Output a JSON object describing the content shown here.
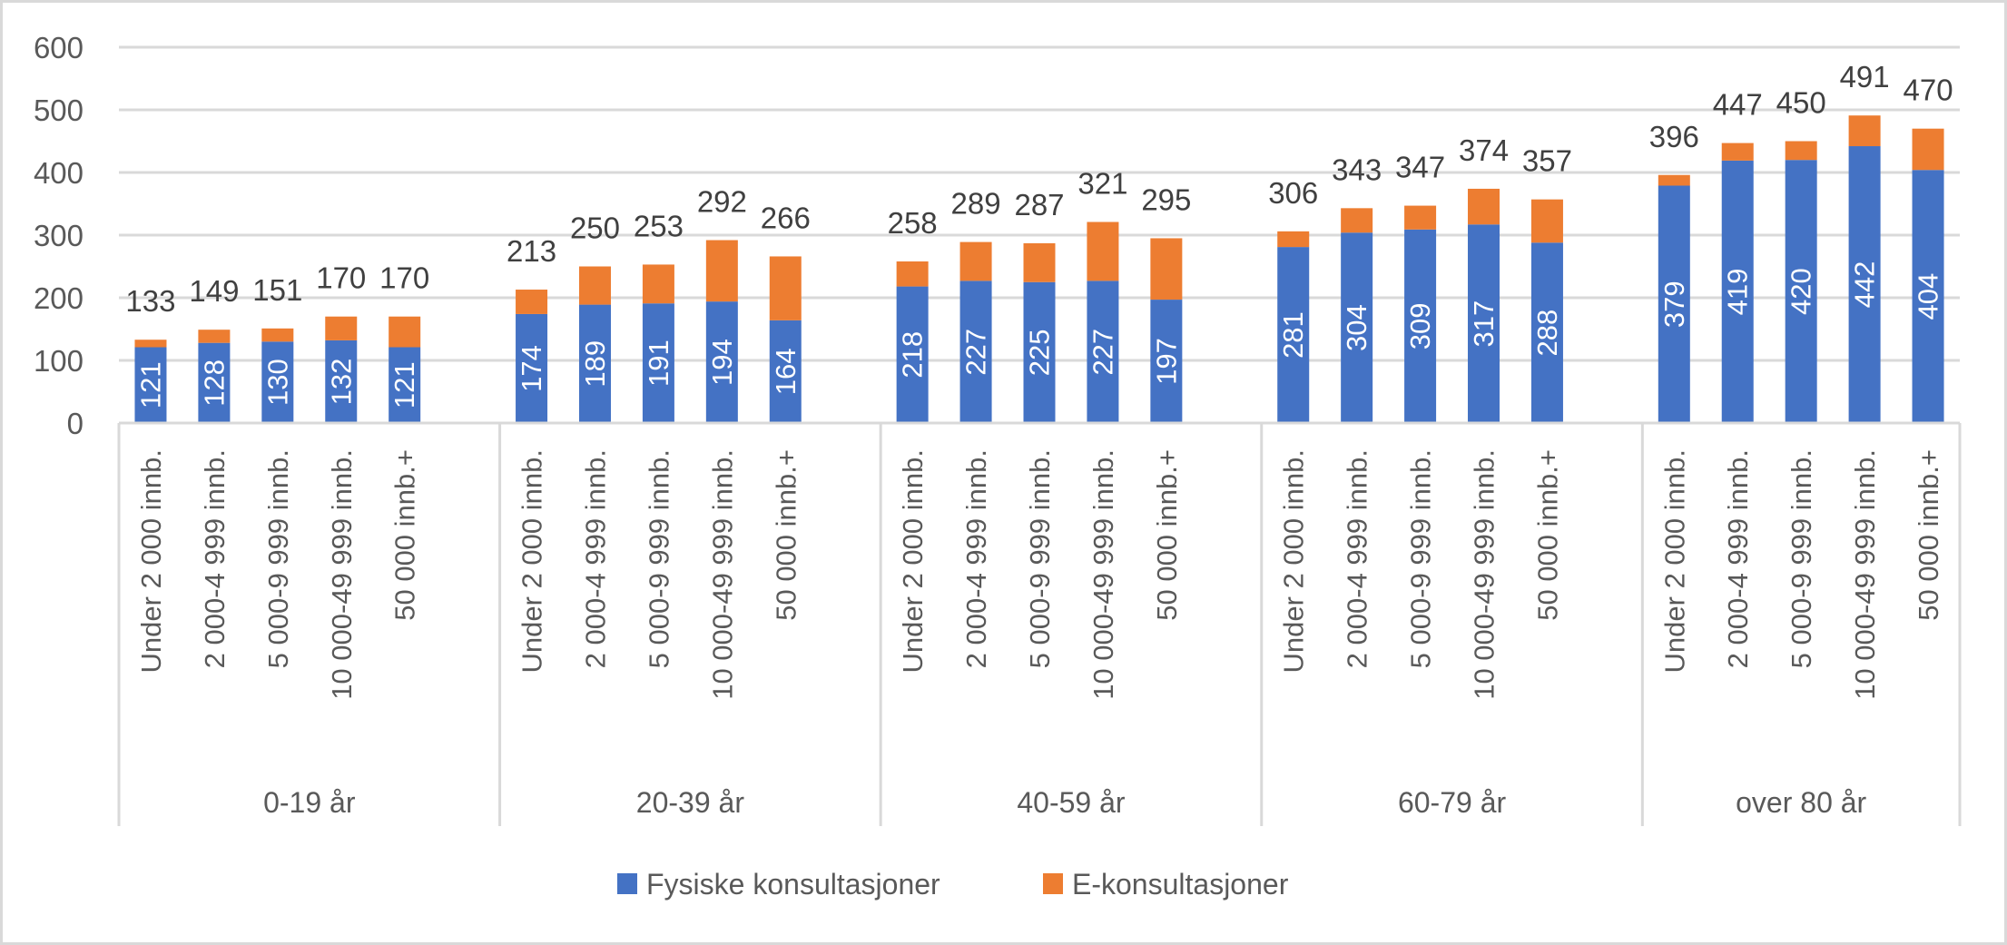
{
  "chart_data": {
    "type": "bar",
    "stacked": true,
    "title": "",
    "xlabel": "",
    "ylabel": "",
    "ylim": [
      0,
      600
    ],
    "yticks": [
      0,
      100,
      200,
      300,
      400,
      500,
      600
    ],
    "grid": true,
    "legend_position": "bottom",
    "groups": [
      "0-19 år",
      "20-39 år",
      "40-59 år",
      "60-79 år",
      "over 80 år"
    ],
    "categories": [
      "Under 2 000 innb.",
      "2 000-4 999 innb.",
      "5 000-9 999 innb.",
      "10 000-49 999 innb.",
      "50 000 innb.+"
    ],
    "series": [
      {
        "name": "Fysiske konsultasjoner",
        "color": "#4472C4",
        "values": [
          [
            121,
            128,
            130,
            132,
            121
          ],
          [
            174,
            189,
            191,
            194,
            164
          ],
          [
            218,
            227,
            225,
            227,
            197
          ],
          [
            281,
            304,
            309,
            317,
            288
          ],
          [
            379,
            419,
            420,
            442,
            404
          ]
        ]
      },
      {
        "name": "E-konsultasjoner",
        "color": "#ED7D31",
        "values": [
          [
            12,
            21,
            21,
            38,
            49
          ],
          [
            39,
            61,
            62,
            98,
            102
          ],
          [
            40,
            62,
            62,
            94,
            98
          ],
          [
            25,
            39,
            38,
            57,
            69
          ],
          [
            17,
            28,
            30,
            49,
            66
          ]
        ]
      }
    ],
    "totals": [
      [
        133,
        149,
        151,
        170,
        170
      ],
      [
        213,
        250,
        253,
        292,
        266
      ],
      [
        258,
        289,
        287,
        321,
        295
      ],
      [
        306,
        343,
        347,
        374,
        357
      ],
      [
        396,
        447,
        450,
        491,
        470
      ]
    ]
  }
}
